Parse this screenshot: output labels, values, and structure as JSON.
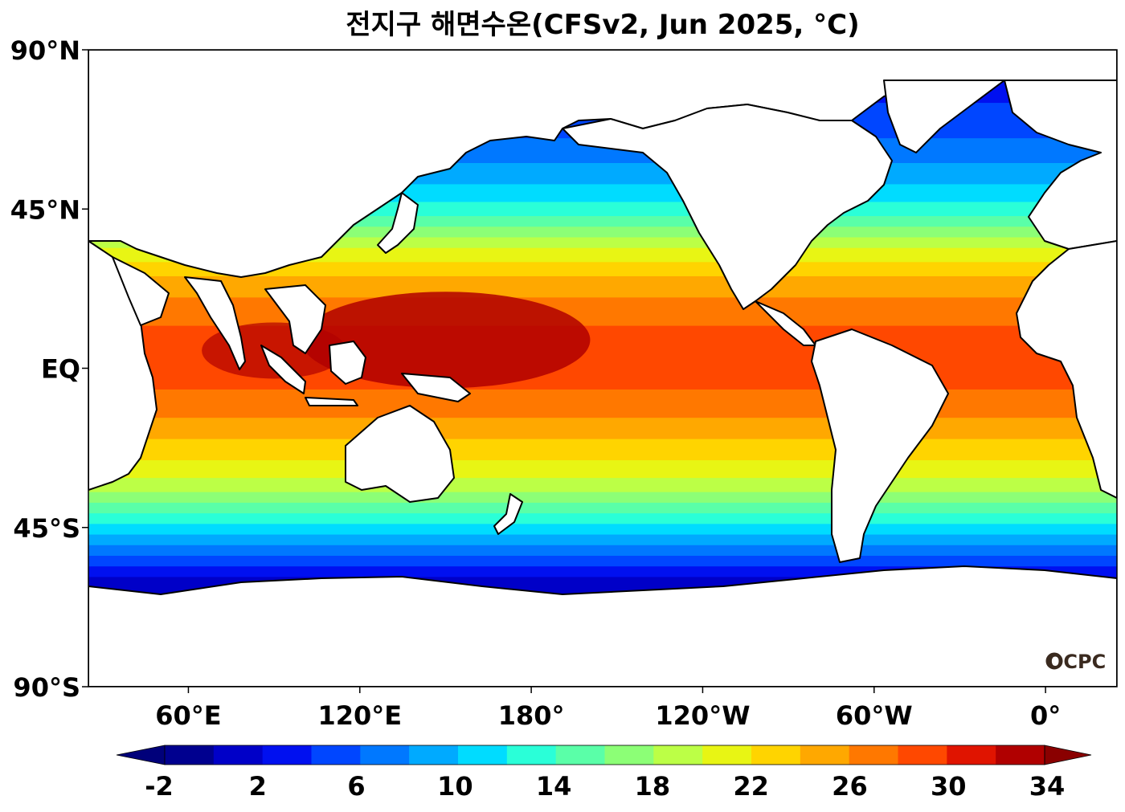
{
  "chart_data": {
    "type": "heatmap",
    "title": "전지구 해면수온(CFSv2, Jun 2025, °C)",
    "lon_ticks": [
      "60°E",
      "120°E",
      "180°",
      "120°W",
      "60°W",
      "0°"
    ],
    "lat_ticks": [
      "90°N",
      "45°N",
      "EQ",
      "45°S",
      "90°S"
    ],
    "lon_tick_values": [
      60,
      120,
      180,
      240,
      300,
      360
    ],
    "lat_tick_values": [
      90,
      45,
      0,
      -45,
      -90
    ],
    "xlim": [
      25,
      385
    ],
    "ylim": [
      -90,
      90
    ],
    "colorbar": {
      "ticks": [
        "-2",
        "2",
        "6",
        "10",
        "14",
        "18",
        "22",
        "26",
        "30",
        "34"
      ],
      "tick_values": [
        -2,
        2,
        6,
        10,
        14,
        18,
        22,
        26,
        30,
        34
      ],
      "levels": [
        -2,
        0,
        2,
        4,
        6,
        8,
        10,
        12,
        14,
        16,
        18,
        20,
        22,
        24,
        26,
        28,
        30,
        32,
        34
      ],
      "colors": [
        "#00008f",
        "#0000c8",
        "#0010f0",
        "#0046ff",
        "#0078ff",
        "#00aaff",
        "#00dcff",
        "#2affd8",
        "#5affa8",
        "#8cff76",
        "#bcff46",
        "#e8f514",
        "#ffd400",
        "#ffa800",
        "#ff7800",
        "#ff4800",
        "#e01400",
        "#b00000"
      ],
      "under_color": "#00007a",
      "over_color": "#8a0000"
    },
    "grid": false,
    "land_color": "#ffffff"
  },
  "logo": {
    "text": "OCPC"
  }
}
